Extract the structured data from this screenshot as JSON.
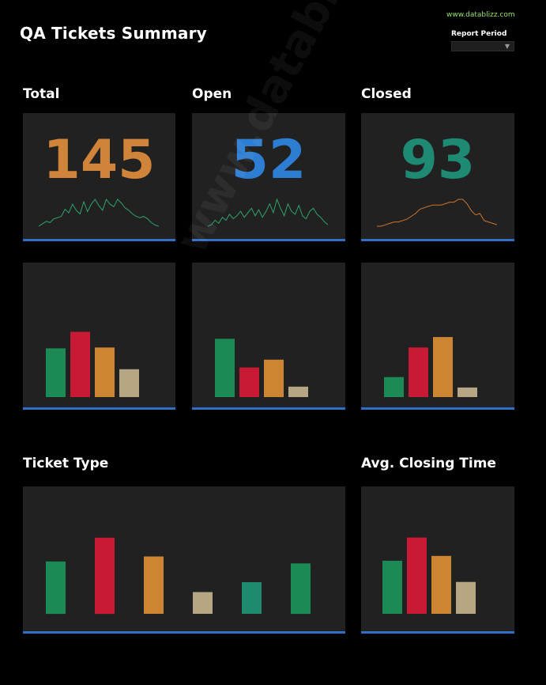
{
  "header": {
    "title": "QA Tickets Summary",
    "site": "www.datablizz.com",
    "report_period_label": "Report Period",
    "report_period_value": ""
  },
  "watermark": "www.datablizz.com",
  "colors": {
    "accent_blue": "#2f6fc4",
    "green": "#1c8a55",
    "red": "#c81a34",
    "orange": "#cc8633",
    "beige": "#b7a684",
    "teal": "#1e8a6e",
    "kpi_total": "#d0843a",
    "kpi_open": "#2d7dd2",
    "kpi_closed": "#1f8a73",
    "spark_green": "#2fa36b",
    "spark_orange": "#d0742c"
  },
  "kpis": [
    {
      "label": "Total",
      "value": "145",
      "color": "#d0843a",
      "spark_color": "#2fa36b"
    },
    {
      "label": "Open",
      "value": "52",
      "color": "#2d7dd2",
      "spark_color": "#2fa36b"
    },
    {
      "label": "Closed",
      "value": "93",
      "color": "#1f8a73",
      "spark_color": "#d0742c"
    }
  ],
  "sections": {
    "ticket_type": "Ticket Type",
    "avg_closing_time": "Avg. Closing Time"
  },
  "chart_data": [
    {
      "id": "spark-total",
      "type": "line",
      "values": [
        2,
        4,
        6,
        5,
        8,
        9,
        10,
        16,
        13,
        20,
        15,
        12,
        22,
        14,
        20,
        24,
        19,
        15,
        24,
        20,
        18,
        24,
        21,
        17,
        15,
        12,
        10,
        9,
        10,
        8,
        5,
        3,
        2
      ]
    },
    {
      "id": "spark-open",
      "type": "line",
      "values": [
        2,
        3,
        6,
        4,
        8,
        6,
        10,
        7,
        9,
        12,
        8,
        11,
        14,
        9,
        13,
        8,
        12,
        17,
        11,
        20,
        14,
        9,
        17,
        12,
        10,
        16,
        9,
        7,
        12,
        14,
        10,
        8,
        5,
        3
      ]
    },
    {
      "id": "spark-closed",
      "type": "line",
      "values": [
        1,
        1,
        2,
        3,
        4,
        4,
        5,
        6,
        8,
        10,
        13,
        14,
        15,
        16,
        16,
        16,
        17,
        18,
        18,
        20,
        20,
        17,
        12,
        9,
        10,
        5,
        4,
        3,
        2
      ]
    },
    {
      "id": "bars-total",
      "type": "bar",
      "ylim": [
        0,
        100
      ],
      "values": [
        56,
        75,
        57,
        32
      ],
      "colors": [
        "#1c8a55",
        "#c81a34",
        "#cc8633",
        "#b7a684"
      ]
    },
    {
      "id": "bars-open",
      "type": "bar",
      "ylim": [
        0,
        100
      ],
      "values": [
        67,
        34,
        43,
        12
      ],
      "colors": [
        "#1c8a55",
        "#c81a34",
        "#cc8633",
        "#b7a684"
      ]
    },
    {
      "id": "bars-closed",
      "type": "bar",
      "ylim": [
        0,
        100
      ],
      "values": [
        23,
        57,
        69,
        11
      ],
      "colors": [
        "#1c8a55",
        "#c81a34",
        "#cc8633",
        "#b7a684"
      ]
    },
    {
      "id": "bars-ticket-type",
      "type": "bar",
      "ylim": [
        0,
        100
      ],
      "values": [
        53,
        77,
        58,
        22,
        32,
        51
      ],
      "colors": [
        "#1c8a55",
        "#c81a34",
        "#cc8633",
        "#b7a684",
        "#1e8a6e",
        "#1c8a55"
      ]
    },
    {
      "id": "bars-avg-closing",
      "type": "bar",
      "ylim": [
        0,
        100
      ],
      "values": [
        55,
        79,
        60,
        33
      ],
      "colors": [
        "#1c8a55",
        "#c81a34",
        "#cc8633",
        "#b7a684"
      ]
    }
  ]
}
